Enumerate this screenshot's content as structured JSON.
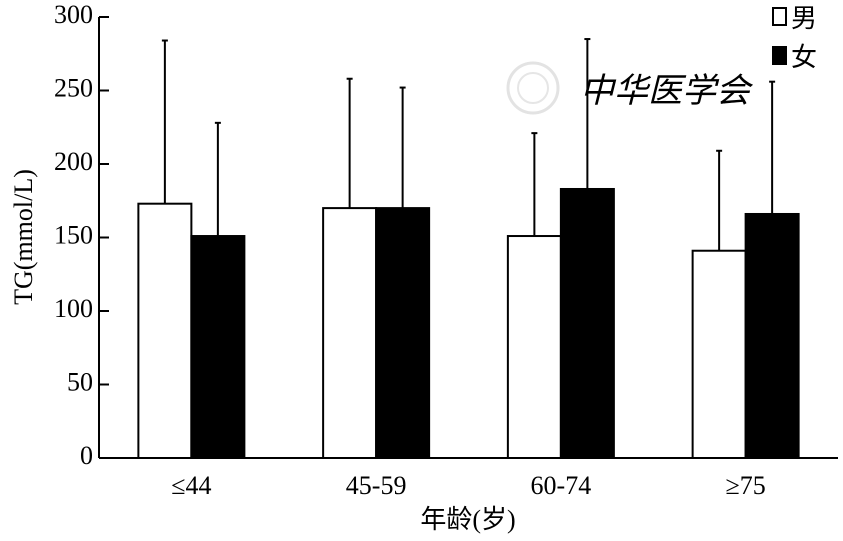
{
  "chart_data": {
    "type": "bar",
    "title": "",
    "xlabel": "年龄(岁)",
    "ylabel": "TG(mmol/L)",
    "categories": [
      "≤44",
      "45-59",
      "60-74",
      "≥75"
    ],
    "ylim": [
      0,
      300
    ],
    "yticks": [
      0,
      50,
      100,
      150,
      200,
      250,
      300
    ],
    "grid": false,
    "legend_position": "top-right",
    "series": [
      {
        "name": "男",
        "values": [
          173,
          170,
          151,
          141
        ],
        "error_upper": [
          284,
          258,
          221,
          209
        ],
        "color": "#ffffff"
      },
      {
        "name": "女",
        "values": [
          151,
          170,
          183,
          166
        ],
        "error_upper": [
          228,
          252,
          285,
          256
        ],
        "color": "#000000"
      }
    ]
  },
  "watermark": {
    "text": "中华医学会"
  }
}
